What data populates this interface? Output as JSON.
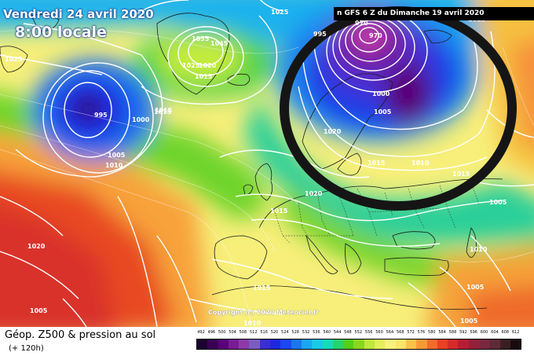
{
  "map": {
    "title_date": "Vendredi 24 avril 2020",
    "title_time": "8:00 locale",
    "run_info": "n GFS 6 Z du Dimanche 19 avril 2020",
    "copyright": "Copyright (c) 2020 Meteociel.fr",
    "isobar_labels": [
      "1025",
      "1025",
      "1015",
      "1010",
      "1005",
      "995",
      "1000",
      "1015",
      "1035",
      "1045",
      "1025",
      "1020",
      "1015",
      "995",
      "970",
      "970",
      "1000",
      "1005",
      "1020",
      "1015",
      "1010",
      "1015",
      "1005",
      "1010",
      "1005",
      "1020",
      "1015",
      "1015",
      "1020",
      "1010",
      "1005",
      "1015",
      "1005"
    ],
    "annotation": "black circle drawn around low pressure over Scandinavia"
  },
  "legend": {
    "title": "Géop. Z500 & pression au sol",
    "subtitle": "(+ 120h)",
    "scale_values": [
      "492",
      "496",
      "500",
      "504",
      "508",
      "512",
      "516",
      "520",
      "524",
      "528",
      "532",
      "536",
      "540",
      "544",
      "548",
      "552",
      "556",
      "560",
      "564",
      "568",
      "572",
      "576",
      "580",
      "584",
      "588",
      "592",
      "596",
      "600",
      "604",
      "608",
      "612"
    ],
    "scale_colors": [
      "#1b0030",
      "#3b0055",
      "#5a0078",
      "#7a1b96",
      "#8d3aa8",
      "#7a5cc0",
      "#3b2ed0",
      "#1d28e0",
      "#1b47f0",
      "#1a76f0",
      "#1aa6f0",
      "#19c9e6",
      "#14dcb8",
      "#26d36c",
      "#52d01a",
      "#8ad61e",
      "#bde83c",
      "#e2f05a",
      "#f6f27a",
      "#fbe56a",
      "#fac24a",
      "#f79a36",
      "#f36a2a",
      "#ea4024",
      "#d42a2a",
      "#b71d32",
      "#94203a",
      "#7a2840",
      "#5f2a38",
      "#3a1e22",
      "#1a0c0c"
    ]
  }
}
